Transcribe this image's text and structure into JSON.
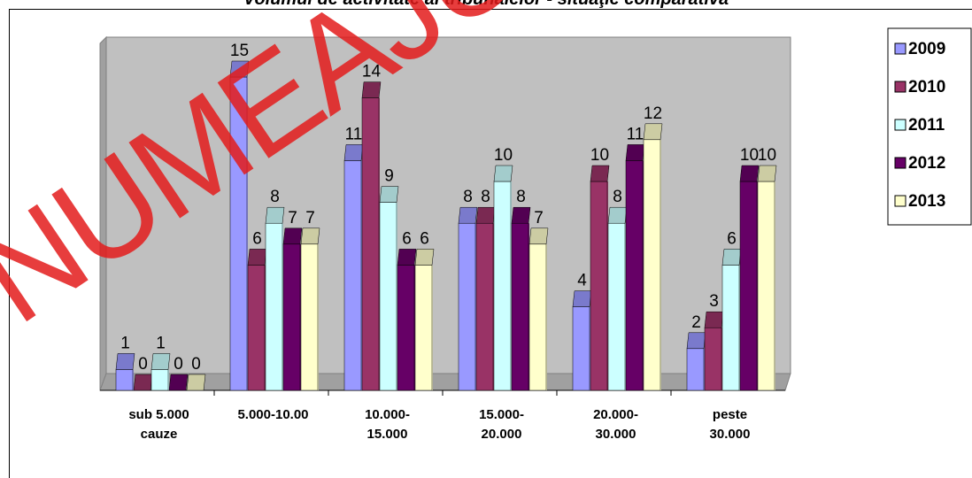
{
  "chart_data": {
    "type": "bar",
    "title": "Volumul de activitate al tribunalelor - situaţie comparativă",
    "categories": [
      [
        "sub 5.000",
        "cauze"
      ],
      [
        "5.000-10.00"
      ],
      [
        "10.000-",
        "15.000"
      ],
      [
        "15.000-",
        "20.000"
      ],
      [
        "20.000-",
        "30.000"
      ],
      [
        "peste",
        "30.000"
      ]
    ],
    "series": [
      {
        "name": "2009",
        "color": "#9999ff",
        "values": [
          1,
          15,
          11,
          8,
          4,
          2
        ]
      },
      {
        "name": "2010",
        "color": "#993366",
        "values": [
          0,
          6,
          14,
          8,
          10,
          3
        ]
      },
      {
        "name": "2011",
        "color": "#ccffff",
        "values": [
          1,
          8,
          9,
          10,
          8,
          6
        ]
      },
      {
        "name": "2012",
        "color": "#660066",
        "values": [
          0,
          7,
          6,
          8,
          11,
          10
        ]
      },
      {
        "name": "2013",
        "color": "#ffffcc",
        "values": [
          0,
          7,
          6,
          7,
          12,
          10
        ]
      }
    ],
    "ylim": [
      0,
      16
    ],
    "legend_position": "right",
    "plot_background": "#c0c0c0"
  },
  "watermark": "NUMEAJUNI"
}
